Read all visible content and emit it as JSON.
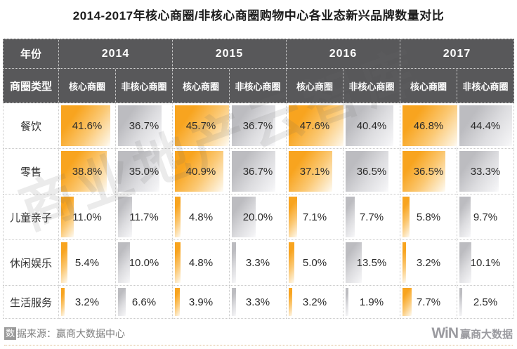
{
  "title": "2014-2017年核心商圈/非核心商圈购物中心各业态新兴品牌数量对比",
  "watermark": "商业地产云智库",
  "colors": {
    "core_bar_orange": "#F8A41F",
    "noncore_bar_gray": "#BCBCC0",
    "header_background": "#58585A",
    "footer_rule_tan": "#DCB98B"
  },
  "table": {
    "year_header_label": "年份",
    "type_header_label": "商圈类型",
    "years": [
      "2014",
      "2015",
      "2016",
      "2017"
    ],
    "subheaders": [
      "核心商圈",
      "非核心商圈"
    ],
    "rows": [
      {
        "label": "餐饮",
        "values": [
          "41.6%",
          "36.7%",
          "45.7%",
          "36.7%",
          "47.6%",
          "40.4%",
          "46.8%",
          "44.4%"
        ]
      },
      {
        "label": "零售",
        "values": [
          "38.8%",
          "35.0%",
          "40.9%",
          "36.7%",
          "37.1%",
          "36.5%",
          "36.5%",
          "33.3%"
        ]
      },
      {
        "label": "儿童亲子",
        "values": [
          "11.0%",
          "11.7%",
          "4.8%",
          "20.0%",
          "7.1%",
          "7.7%",
          "5.8%",
          "9.7%"
        ]
      },
      {
        "label": "休闲娱乐",
        "values": [
          "5.4%",
          "10.0%",
          "4.8%",
          "3.3%",
          "5.0%",
          "13.5%",
          "3.2%",
          "10.1%"
        ]
      },
      {
        "label": "生活服务",
        "values": [
          "3.2%",
          "6.6%",
          "3.9%",
          "3.3%",
          "3.2%",
          "1.9%",
          "7.7%",
          "2.5%"
        ]
      }
    ]
  },
  "chart_data": {
    "type": "table",
    "title": "2014-2017年核心商圈/非核心商圈购物中心各业态新兴品牌数量对比",
    "unit": "%",
    "bar_scale_max": 47.6,
    "categories": [
      "2014 核心商圈",
      "2014 非核心商圈",
      "2015 核心商圈",
      "2015 非核心商圈",
      "2016 核心商圈",
      "2016 非核心商圈",
      "2017 核心商圈",
      "2017 非核心商圈"
    ],
    "series": [
      {
        "name": "餐饮",
        "values": [
          41.6,
          36.7,
          45.7,
          36.7,
          47.6,
          40.4,
          46.8,
          44.4
        ]
      },
      {
        "name": "零售",
        "values": [
          38.8,
          35.0,
          40.9,
          36.7,
          37.1,
          36.5,
          36.5,
          33.3
        ]
      },
      {
        "name": "儿童亲子",
        "values": [
          11.0,
          11.7,
          4.8,
          20.0,
          7.1,
          7.7,
          5.8,
          9.7
        ]
      },
      {
        "name": "休闲娱乐",
        "values": [
          5.4,
          10.0,
          4.8,
          3.3,
          5.0,
          13.5,
          3.2,
          10.1
        ]
      },
      {
        "name": "生活服务",
        "values": [
          3.2,
          6.6,
          3.9,
          3.3,
          3.2,
          1.9,
          7.7,
          2.5
        ]
      }
    ]
  },
  "footer": {
    "source_badge_char": "数",
    "source_rest": "据来源：赢商大数据中心",
    "logo_mark": "WiN",
    "logo_text": "赢商大数据"
  }
}
